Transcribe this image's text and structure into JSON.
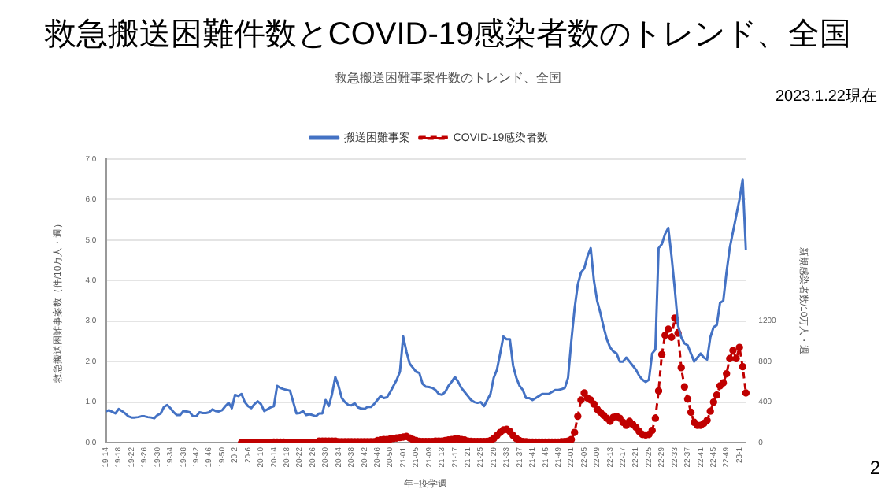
{
  "chart_data": {
    "type": "line",
    "title": "救急搬送困難件数とCOVID-19感染者数のトレンド、全国",
    "subtitle": "救急搬送困難事案件数のトレンド、全国",
    "annotations": [
      "2023.1.22現在",
      "2"
    ],
    "xlabel": "年−疫学週",
    "ylabel": "救急搬送困難事案数（件/10万人・週）",
    "y2label": "新規感染者数/10万人・週",
    "categories": [
      "19-14",
      null,
      null,
      null,
      "19-18",
      null,
      null,
      null,
      "19-22",
      null,
      null,
      null,
      "19-26",
      null,
      null,
      null,
      "19-30",
      null,
      null,
      null,
      "19-34",
      null,
      null,
      null,
      "19-38",
      null,
      null,
      null,
      "19-42",
      null,
      null,
      null,
      "19-46",
      null,
      null,
      null,
      "19-50",
      null,
      null,
      null,
      "20-2",
      null,
      null,
      null,
      "20-6",
      null,
      null,
      null,
      "20-10",
      null,
      null,
      null,
      "20-14",
      null,
      null,
      null,
      "20-18",
      null,
      null,
      null,
      "20-22",
      null,
      null,
      null,
      "20-26",
      null,
      null,
      null,
      "20-30",
      null,
      null,
      null,
      "20-34",
      null,
      null,
      null,
      "20-38",
      null,
      null,
      null,
      "20-42",
      null,
      null,
      null,
      "20-46",
      null,
      null,
      null,
      "20-50",
      null,
      null,
      null,
      "21-01",
      null,
      null,
      null,
      "21-05",
      null,
      null,
      null,
      "21-09",
      null,
      null,
      null,
      "21-13",
      null,
      null,
      null,
      "21-17",
      null,
      null,
      null,
      "21-21",
      null,
      null,
      null,
      "21-25",
      null,
      null,
      null,
      "21-29",
      null,
      null,
      null,
      "21-33",
      null,
      null,
      null,
      "21-37",
      null,
      null,
      null,
      "21-41",
      null,
      null,
      null,
      "21-45",
      null,
      null,
      null,
      "21-49",
      null,
      null,
      null,
      "22-01",
      null,
      null,
      null,
      "22-05",
      null,
      null,
      null,
      "22-09",
      null,
      null,
      null,
      "22-13",
      null,
      null,
      null,
      "22-17",
      null,
      null,
      null,
      "22-21",
      null,
      null,
      null,
      "22-25",
      null,
      null,
      null,
      "22-29",
      null,
      null,
      null,
      "22-33",
      null,
      null,
      null,
      "22-37",
      null,
      null,
      null,
      "22-41",
      null,
      null,
      null,
      "22-45",
      null,
      null,
      null,
      "22-49",
      null,
      null,
      null,
      "23-1",
      null,
      null
    ],
    "series": [
      {
        "name": "搬送困難事案",
        "color": "#4472c4",
        "axis": "y",
        "marker": "none",
        "line_style": "solid",
        "values": [
          0.77,
          0.8,
          0.76,
          0.72,
          0.83,
          0.78,
          0.72,
          0.65,
          0.62,
          0.62,
          0.63,
          0.65,
          0.65,
          0.63,
          0.62,
          0.6,
          0.68,
          0.72,
          0.88,
          0.93,
          0.85,
          0.75,
          0.68,
          0.68,
          0.78,
          0.77,
          0.75,
          0.65,
          0.65,
          0.75,
          0.73,
          0.73,
          0.75,
          0.82,
          0.78,
          0.77,
          0.8,
          0.9,
          0.98,
          0.85,
          1.18,
          1.15,
          1.2,
          1.0,
          0.9,
          0.85,
          0.95,
          1.02,
          0.95,
          0.78,
          0.82,
          0.87,
          0.9,
          1.4,
          1.35,
          1.32,
          1.3,
          1.28,
          1.0,
          0.72,
          0.73,
          0.78,
          0.68,
          0.7,
          0.68,
          0.65,
          0.72,
          0.72,
          1.05,
          0.9,
          1.2,
          1.62,
          1.4,
          1.1,
          1.0,
          0.93,
          0.92,
          0.97,
          0.87,
          0.84,
          0.83,
          0.88,
          0.88,
          0.95,
          1.05,
          1.15,
          1.1,
          1.12,
          1.25,
          1.4,
          1.55,
          1.75,
          2.62,
          2.25,
          1.95,
          1.85,
          1.75,
          1.72,
          1.45,
          1.38,
          1.37,
          1.35,
          1.3,
          1.2,
          1.18,
          1.25,
          1.4,
          1.5,
          1.62,
          1.5,
          1.35,
          1.25,
          1.15,
          1.05,
          1.0,
          0.98,
          1.0,
          0.9,
          1.05,
          1.2,
          1.6,
          1.8,
          2.2,
          2.62,
          2.55,
          2.55,
          1.9,
          1.6,
          1.4,
          1.3,
          1.1,
          1.1,
          1.05,
          1.1,
          1.15,
          1.2,
          1.2,
          1.2,
          1.25,
          1.3,
          1.3,
          1.32,
          1.35,
          1.6,
          2.5,
          3.3,
          3.9,
          4.2,
          4.3,
          4.6,
          4.8,
          4.0,
          3.5,
          3.2,
          2.85,
          2.55,
          2.35,
          2.25,
          2.2,
          2.0,
          2.0,
          2.1,
          2.0,
          1.9,
          1.8,
          1.65,
          1.55,
          1.5,
          1.55,
          2.2,
          2.3,
          4.8,
          4.9,
          5.15,
          5.3,
          4.6,
          3.8,
          2.9,
          2.6,
          2.45,
          2.4,
          2.2,
          2.0,
          2.1,
          2.2,
          2.1,
          2.05,
          2.6,
          2.85,
          2.9,
          3.45,
          3.5,
          4.2,
          4.8,
          5.2,
          5.6,
          6.0,
          6.5,
          4.75
        ]
      },
      {
        "name": "COVID-19感染者数",
        "color": "#c00000",
        "axis": "y2",
        "marker": "circle",
        "line_style": "dashed",
        "values": [
          null,
          null,
          null,
          null,
          null,
          null,
          null,
          null,
          null,
          null,
          null,
          null,
          null,
          null,
          null,
          null,
          null,
          null,
          null,
          null,
          null,
          null,
          null,
          null,
          null,
          null,
          null,
          null,
          null,
          null,
          null,
          null,
          null,
          null,
          null,
          null,
          null,
          null,
          null,
          null,
          null,
          null,
          0,
          0,
          0,
          0,
          0,
          0,
          0,
          0,
          0,
          0,
          5,
          5,
          5,
          5,
          2,
          2,
          2,
          2,
          2,
          2,
          2,
          2,
          2,
          2,
          15,
          15,
          15,
          15,
          15,
          15,
          8,
          8,
          8,
          8,
          8,
          8,
          8,
          8,
          8,
          8,
          8,
          8,
          20,
          25,
          30,
          30,
          35,
          40,
          45,
          50,
          55,
          60,
          45,
          30,
          20,
          12,
          10,
          10,
          10,
          10,
          15,
          15,
          15,
          20,
          25,
          30,
          35,
          35,
          30,
          25,
          15,
          12,
          10,
          10,
          10,
          10,
          12,
          20,
          40,
          70,
          100,
          125,
          130,
          110,
          70,
          40,
          20,
          10,
          8,
          5,
          5,
          5,
          5,
          5,
          5,
          5,
          5,
          5,
          5,
          8,
          10,
          15,
          30,
          100,
          260,
          420,
          490,
          440,
          420,
          380,
          330,
          300,
          270,
          240,
          210,
          250,
          260,
          240,
          200,
          170,
          210,
          180,
          150,
          110,
          80,
          75,
          80,
          120,
          240,
          510,
          870,
          1060,
          1120,
          1040,
          1230,
          1080,
          740,
          550,
          430,
          300,
          200,
          170,
          170,
          190,
          220,
          310,
          400,
          470,
          560,
          590,
          680,
          830,
          910,
          830,
          940,
          750,
          490
        ]
      }
    ],
    "ylim": [
      0,
      7
    ],
    "yticks": [
      {
        "value": 0,
        "label": "0.0"
      },
      {
        "value": 1,
        "label": "1.0"
      },
      {
        "value": 2,
        "label": "2.0"
      },
      {
        "value": 3,
        "label": "3.0"
      },
      {
        "value": 4,
        "label": "4.0"
      },
      {
        "value": 5,
        "label": "5.0"
      },
      {
        "value": 6,
        "label": "6.0"
      },
      {
        "value": 7,
        "label": "7.0"
      }
    ],
    "y2lim": [
      0,
      2800
    ],
    "y2ticks": [
      0,
      400,
      800,
      1200
    ],
    "grid": "y",
    "legend": "top"
  }
}
